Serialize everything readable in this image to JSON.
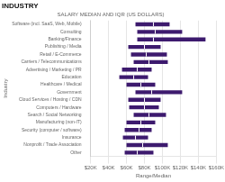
{
  "chart_data": {
    "type": "bar",
    "orientation": "horizontal",
    "title": "INDUSTRY",
    "subtitle": "SALARY MEDIAN AND IQR (US DOLLARS)",
    "xlabel": "Range/Median",
    "ylabel": "Industry",
    "color": "#3d1a6e",
    "categories": [
      "Software (incl. SaaS, Web, Mobile)",
      "Consulting",
      "Banking/Finance",
      "Publishing / Media",
      "Retail / E-Commerce",
      "Carriers / Telecommunications",
      "Advertising / Marketing / PR",
      "Education",
      "Healthcare / Medical",
      "Government",
      "Cloud Services / Hosting / CDN",
      "Computers / Hardware",
      "Search / Social Networking",
      "Manufacturing (non-IT)",
      "Security (computer / software)",
      "Insurance",
      "Nonprofit / Trade Association",
      "Other"
    ],
    "values": [
      90000,
      92000,
      90000,
      80000,
      82000,
      85000,
      72000,
      68000,
      76000,
      88000,
      80000,
      80000,
      85000,
      76000,
      74000,
      70000,
      78000,
      72000
    ],
    "q1": [
      70000,
      72000,
      72000,
      62000,
      65000,
      68000,
      55000,
      52000,
      60000,
      70000,
      62000,
      63000,
      68000,
      60000,
      58000,
      56000,
      60000,
      58000
    ],
    "q3": [
      108000,
      122000,
      148000,
      98000,
      105000,
      106000,
      88000,
      84000,
      92000,
      122000,
      98000,
      96000,
      104000,
      92000,
      88000,
      84000,
      106000,
      90000
    ],
    "xlim": [
      20000,
      160000
    ],
    "xticks": [
      {
        "value": 20000,
        "label": "$20K"
      },
      {
        "value": 40000,
        "label": "$40K"
      },
      {
        "value": 60000,
        "label": "$60K"
      },
      {
        "value": 80000,
        "label": "$80K"
      },
      {
        "value": 100000,
        "label": "$100K"
      },
      {
        "value": 120000,
        "label": "$120K"
      },
      {
        "value": 140000,
        "label": "$140K"
      },
      {
        "value": 160000,
        "label": "$160K"
      }
    ],
    "grid": true
  }
}
